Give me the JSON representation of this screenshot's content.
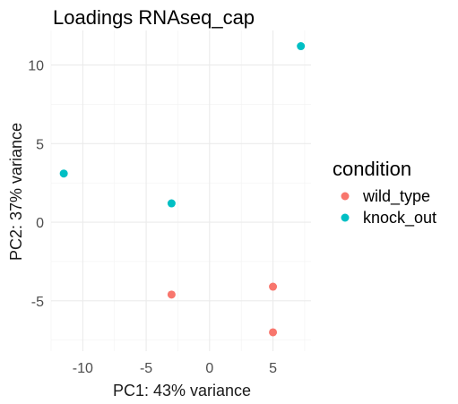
{
  "chart_data": {
    "type": "scatter",
    "title": "Loadings RNAseq_cap",
    "xlabel": "PC1: 43% variance",
    "ylabel": "PC2: 37% variance",
    "xlim": [
      -12.5,
      8
    ],
    "ylim": [
      -8.2,
      12.2
    ],
    "x_ticks": [
      -10,
      -5,
      0,
      5
    ],
    "y_ticks": [
      -5,
      0,
      5,
      10
    ],
    "grid": true,
    "legend": {
      "title": "condition",
      "placement": "right"
    },
    "series": [
      {
        "name": "wild_type",
        "color": "#F8766D",
        "points": [
          {
            "x": -3,
            "y": -4.6
          },
          {
            "x": 5,
            "y": -4.1
          },
          {
            "x": 5,
            "y": -7
          }
        ]
      },
      {
        "name": "knock_out",
        "color": "#00BFC4",
        "points": [
          {
            "x": -11.5,
            "y": 3.1
          },
          {
            "x": -3,
            "y": 1.2
          },
          {
            "x": 7.2,
            "y": 11.2
          }
        ]
      }
    ]
  }
}
